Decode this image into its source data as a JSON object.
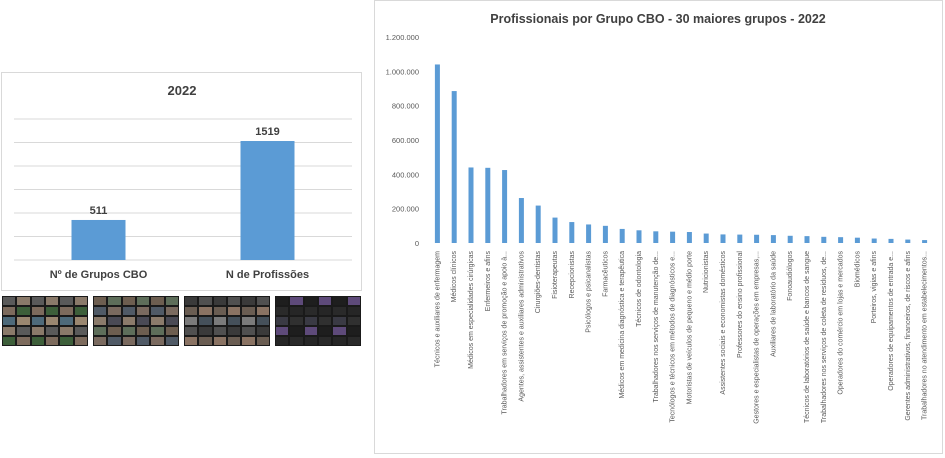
{
  "chart_data": [
    {
      "type": "bar",
      "title": "2022",
      "categories": [
        "Nº de Grupos CBO",
        "N de Profissões"
      ],
      "values": [
        511,
        1519
      ],
      "data_labels": [
        "511",
        "1519"
      ],
      "ylim": [
        0,
        1800
      ],
      "grid": true,
      "bar_color": "#5b9bd5"
    },
    {
      "type": "bar",
      "title": "Profissionais por Grupo CBO - 30 maiores grupos - 2022",
      "ylim": [
        0,
        1200000
      ],
      "yticks": [
        "0",
        "200.000",
        "400.000",
        "600.000",
        "800.000",
        "1.000.000",
        "1.200.000"
      ],
      "ytick_values": [
        0,
        200000,
        400000,
        600000,
        800000,
        1000000,
        1200000
      ],
      "grid": false,
      "bar_color": "#5b9bd5",
      "categories": [
        "Técnicos e auxiliares de enfermagem",
        "Médicos clínicos",
        "Médicos em especialidades cirúrgicas",
        "Enfermeiros e afins",
        "Trabalhadores em serviços de promoção e apoio à...",
        "Agentes, assistentes e auxiliares administrativos",
        "Cirurgiões-dentistas",
        "Fisioterapeutas",
        "Recepcionistas",
        "Psicólogos e psicanalistas",
        "Farmacêuticos",
        "Médicos em medicina diagnóstica e terapêutica",
        "Técnicos de odontologia",
        "Trabalhadores nos serviços de manutenção de...",
        "Tecnólogos e técnicos em métodos de diagnósticos e...",
        "Motoristas de veículos de pequeno e médio porte",
        "Nutricionistas",
        "Assistentes sociais e economistas domésticos",
        "Professores do ensino profissional",
        "Gestores e especialistas de operações em empresas,...",
        "Auxiliares de laboratório da saúde",
        "Fonoaudiólogos",
        "Técnicos de laboratórios de saúde e bancos de sangue",
        "Trabalhadores nos serviços de coleta de resíduos, de...",
        "Operadores do comércio em lojas e mercados",
        "Biomédicos",
        "Porteiros, vigias e afins",
        "Operadores de equipamentos de entrada e...",
        "Gerentes administrativos, financeiros, de riscos e afins",
        "Trabalhadores no atendimento em estabelecimentos..."
      ],
      "values": [
        1040000,
        885000,
        440000,
        438000,
        425000,
        262000,
        218000,
        148000,
        122000,
        108000,
        100000,
        82000,
        74000,
        68000,
        66000,
        64000,
        55000,
        50000,
        49000,
        48000,
        46000,
        42000,
        40000,
        36000,
        34000,
        31000,
        26000,
        24000,
        20000,
        17000
      ]
    }
  ]
}
